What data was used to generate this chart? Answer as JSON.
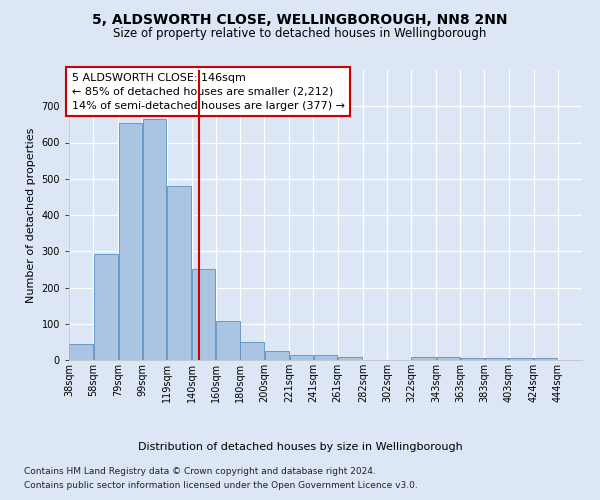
{
  "title": "5, ALDSWORTH CLOSE, WELLINGBOROUGH, NN8 2NN",
  "subtitle": "Size of property relative to detached houses in Wellingborough",
  "xlabel": "Distribution of detached houses by size in Wellingborough",
  "ylabel": "Number of detached properties",
  "footer_line1": "Contains HM Land Registry data © Crown copyright and database right 2024.",
  "footer_line2": "Contains public sector information licensed under the Open Government Licence v3.0.",
  "bar_left_edges": [
    38,
    58,
    79,
    99,
    119,
    140,
    160,
    180,
    200,
    221,
    241,
    261,
    282,
    302,
    322,
    343,
    363,
    383,
    403,
    424
  ],
  "bar_heights": [
    45,
    293,
    653,
    665,
    480,
    252,
    107,
    50,
    25,
    13,
    13,
    8,
    0,
    0,
    8,
    8,
    5,
    5,
    5,
    5
  ],
  "bar_widths": [
    20,
    21,
    20,
    20,
    21,
    20,
    20,
    20,
    21,
    20,
    20,
    21,
    20,
    20,
    21,
    20,
    20,
    20,
    21,
    20
  ],
  "tick_labels": [
    "38sqm",
    "58sqm",
    "79sqm",
    "99sqm",
    "119sqm",
    "140sqm",
    "160sqm",
    "180sqm",
    "200sqm",
    "221sqm",
    "241sqm",
    "261sqm",
    "282sqm",
    "302sqm",
    "322sqm",
    "343sqm",
    "363sqm",
    "383sqm",
    "403sqm",
    "424sqm",
    "444sqm"
  ],
  "property_line_x": 146,
  "property_line_color": "#cc0000",
  "annotation_text_line1": "5 ALDSWORTH CLOSE: 146sqm",
  "annotation_text_line2": "← 85% of detached houses are smaller (2,212)",
  "annotation_text_line3": "14% of semi-detached houses are larger (377) →",
  "ylim": [
    0,
    800
  ],
  "yticks": [
    0,
    100,
    200,
    300,
    400,
    500,
    600,
    700
  ],
  "xlim_left": 38,
  "xlim_right": 464,
  "bar_color": "#aac4e4",
  "bar_edge_color": "#5a8fc0",
  "bg_color": "#dce6f5",
  "plot_bg_color": "#dce6f5",
  "grid_color": "#ffffff",
  "title_fontsize": 10,
  "subtitle_fontsize": 8.5,
  "ylabel_fontsize": 8,
  "xlabel_fontsize": 8,
  "tick_fontsize": 7,
  "footer_fontsize": 6.5,
  "annotation_fontsize": 8
}
